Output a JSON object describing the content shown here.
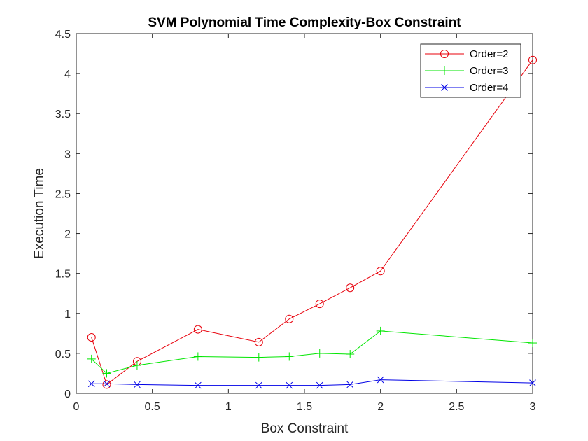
{
  "chart_data": {
    "type": "line",
    "title": "SVM Polynomial Time Complexity-Box Constraint",
    "xlabel": "Box Constraint",
    "ylabel": "Execution Time",
    "xlim": [
      0,
      3
    ],
    "ylim": [
      0,
      4.5
    ],
    "xticks": [
      "0",
      "0.5",
      "1",
      "1.5",
      "2",
      "2.5",
      "3"
    ],
    "yticks": [
      "0",
      "0.5",
      "1",
      "1.5",
      "2",
      "2.5",
      "3",
      "3.5",
      "4",
      "4.5"
    ],
    "grid": false,
    "legend_position": "top-right",
    "series": [
      {
        "name": "Order=2",
        "color": "#e8000b",
        "marker": "circle",
        "x": [
          0.1,
          0.2,
          0.4,
          0.8,
          1.2,
          1.4,
          1.6,
          1.8,
          2.0,
          3.0
        ],
        "y": [
          0.7,
          0.11,
          0.4,
          0.8,
          0.64,
          0.93,
          1.12,
          1.32,
          1.53,
          4.17
        ]
      },
      {
        "name": "Order=3",
        "color": "#00e600",
        "marker": "plus",
        "x": [
          0.1,
          0.2,
          0.4,
          0.8,
          1.2,
          1.4,
          1.6,
          1.8,
          2.0,
          3.0
        ],
        "y": [
          0.43,
          0.25,
          0.35,
          0.46,
          0.45,
          0.46,
          0.5,
          0.49,
          0.78,
          0.63
        ]
      },
      {
        "name": "Order=4",
        "color": "#0000e6",
        "marker": "x",
        "x": [
          0.1,
          0.2,
          0.4,
          0.8,
          1.2,
          1.4,
          1.6,
          1.8,
          2.0,
          3.0
        ],
        "y": [
          0.12,
          0.12,
          0.11,
          0.1,
          0.1,
          0.1,
          0.1,
          0.11,
          0.17,
          0.13
        ]
      }
    ]
  }
}
